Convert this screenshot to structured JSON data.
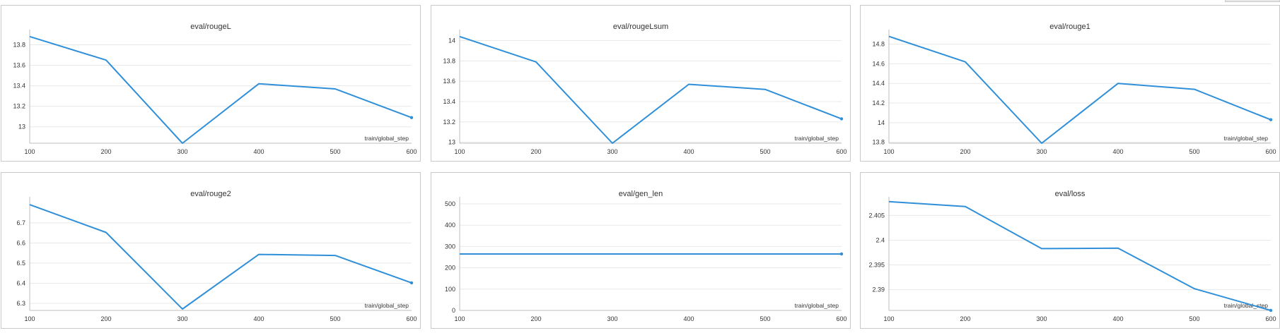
{
  "colors": {
    "line": "#2f8fd8",
    "grid": "#e8e8e8",
    "axis": "#bdbdbd",
    "text": "#333333"
  },
  "chart_data": [
    {
      "type": "line",
      "title": "eval/rougeL",
      "xlabel": "train/global_step",
      "x": [
        100,
        200,
        300,
        400,
        500,
        600
      ],
      "y": [
        13.88,
        13.65,
        12.84,
        13.42,
        13.37,
        13.09
      ],
      "xticks": [
        "100",
        "200",
        "300",
        "400",
        "500",
        "600"
      ],
      "yticks": [
        13,
        13.2,
        13.4,
        13.6,
        13.8
      ],
      "yticklabels": [
        "13",
        "13.2",
        "13.4",
        "13.6",
        "13.8"
      ],
      "xlim": [
        100,
        600
      ],
      "ylim": [
        12.84,
        13.92
      ]
    },
    {
      "type": "line",
      "title": "eval/rougeLsum",
      "xlabel": "train/global_step",
      "x": [
        100,
        200,
        300,
        400,
        500,
        600
      ],
      "y": [
        14.04,
        13.79,
        12.99,
        13.57,
        13.52,
        13.23
      ],
      "xticks": [
        "100",
        "200",
        "300",
        "400",
        "500",
        "600"
      ],
      "yticks": [
        13,
        13.2,
        13.4,
        13.6,
        13.8,
        14
      ],
      "yticklabels": [
        "13",
        "13.2",
        "13.4",
        "13.6",
        "13.8",
        "14"
      ],
      "xlim": [
        100,
        600
      ],
      "ylim": [
        12.99,
        14.08
      ]
    },
    {
      "type": "line",
      "title": "eval/rouge1",
      "xlabel": "train/global_step",
      "x": [
        100,
        200,
        300,
        400,
        500,
        600
      ],
      "y": [
        14.88,
        14.62,
        13.79,
        14.4,
        14.34,
        14.03
      ],
      "xticks": [
        "100",
        "200",
        "300",
        "400",
        "500",
        "600"
      ],
      "yticks": [
        13.8,
        14,
        14.2,
        14.4,
        14.6,
        14.8
      ],
      "yticklabels": [
        "13.8",
        "14",
        "14.2",
        "14.4",
        "14.6",
        "14.8"
      ],
      "xlim": [
        100,
        600
      ],
      "ylim": [
        13.79,
        14.92
      ]
    },
    {
      "type": "line",
      "title": "eval/rouge2",
      "xlabel": "train/global_step",
      "x": [
        100,
        200,
        300,
        400,
        500,
        600
      ],
      "y": [
        6.79,
        6.652,
        6.272,
        6.543,
        6.538,
        6.402
      ],
      "xticks": [
        "100",
        "200",
        "300",
        "400",
        "500",
        "600"
      ],
      "yticks": [
        6.3,
        6.4,
        6.5,
        6.6,
        6.7
      ],
      "yticklabels": [
        "6.3",
        "6.4",
        "6.5",
        "6.6",
        "6.7"
      ],
      "xlim": [
        100,
        600
      ],
      "ylim": [
        6.265,
        6.815
      ]
    },
    {
      "type": "line",
      "title": "eval/gen_len",
      "xlabel": "train/global_step",
      "x": [
        100,
        200,
        300,
        400,
        500,
        600
      ],
      "y": [
        265,
        265,
        265,
        265,
        265,
        265
      ],
      "xticks": [
        "100",
        "200",
        "300",
        "400",
        "500",
        "600"
      ],
      "yticks": [
        0,
        100,
        200,
        300,
        400,
        500
      ],
      "yticklabels": [
        "0",
        "100",
        "200",
        "300",
        "400",
        "500"
      ],
      "xlim": [
        100,
        600
      ],
      "ylim": [
        0,
        520
      ]
    },
    {
      "type": "line",
      "title": "eval/loss",
      "xlabel": "train/global_step",
      "x": [
        100,
        200,
        300,
        400,
        500,
        600
      ],
      "y": [
        2.4078,
        2.4068,
        2.3983,
        2.3984,
        2.3902,
        2.3858
      ],
      "xticks": [
        "100",
        "200",
        "300",
        "400",
        "500",
        "600"
      ],
      "yticks": [
        2.39,
        2.395,
        2.4,
        2.405
      ],
      "yticklabels": [
        "2.39",
        "2.395",
        "2.4",
        "2.405"
      ],
      "xlim": [
        100,
        600
      ],
      "ylim": [
        2.3858,
        2.4082
      ]
    }
  ]
}
